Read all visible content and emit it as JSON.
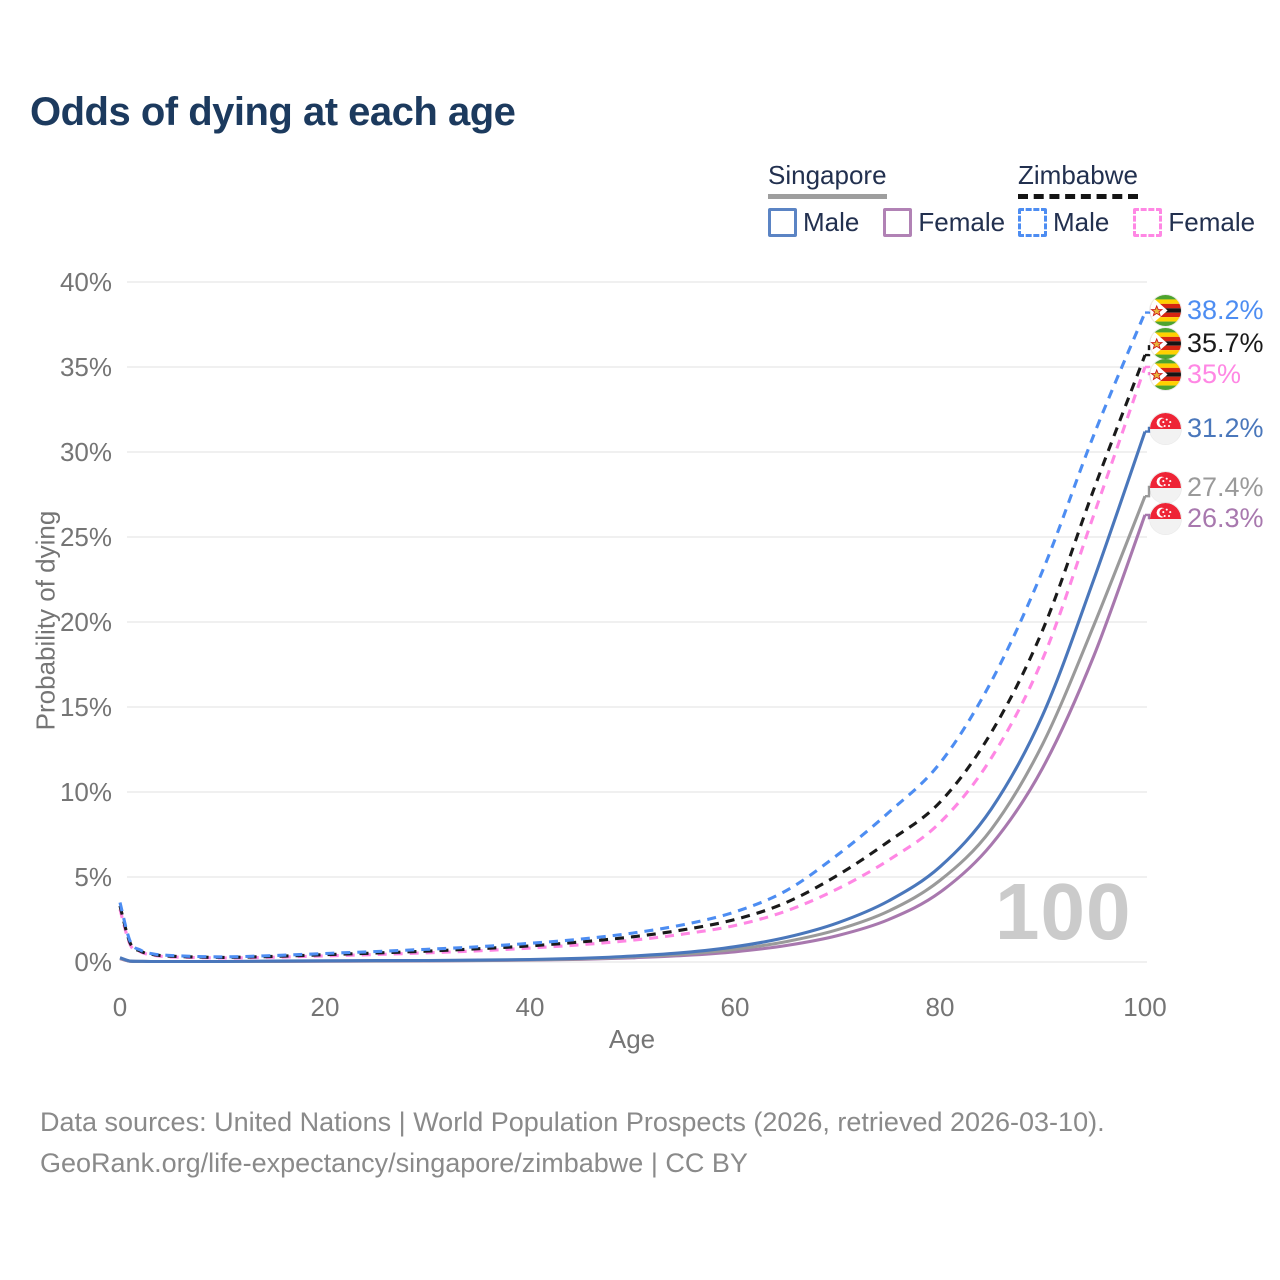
{
  "title": "Odds of dying at each age",
  "legend": {
    "groups": [
      {
        "label": "Singapore",
        "style": "solid",
        "underline_color": "#9e9e9e",
        "items": [
          {
            "label": "Male",
            "color": "#5b84c4"
          },
          {
            "label": "Female",
            "color": "#b182b5"
          }
        ]
      },
      {
        "label": "Zimbabwe",
        "style": "dashed",
        "underline_color": "#141414",
        "items": [
          {
            "label": "Male",
            "color": "#4d8df2"
          },
          {
            "label": "Female",
            "color": "#ff87e4"
          }
        ]
      }
    ]
  },
  "watermark_hover_age": "100",
  "footer": {
    "line1": "Data sources: United Nations | World Population Prospects (2026, retrieved 2026-03-10).",
    "line2": "GeoRank.org/life-expectancy/singapore/zimbabwe | CC BY"
  },
  "chart_data": {
    "type": "line",
    "title": "Odds of dying at each age",
    "xlabel": "Age",
    "ylabel": "Probability of dying",
    "xlim": [
      0,
      100
    ],
    "ylim": [
      0,
      40
    ],
    "x_ticks": [
      0,
      20,
      40,
      60,
      80,
      100
    ],
    "x_tick_labels": [
      "0",
      "20",
      "40",
      "60",
      "80",
      "100"
    ],
    "y_ticks": [
      0,
      5,
      10,
      15,
      20,
      25,
      30,
      35,
      40
    ],
    "y_tick_labels": [
      "0%",
      "5%",
      "10%",
      "15%",
      "20%",
      "25%",
      "30%",
      "35%",
      "40%"
    ],
    "grid": "horizontal",
    "legend_position": "top-right",
    "hover_age": 100,
    "ages": [
      0,
      1,
      2,
      3,
      5,
      10,
      15,
      20,
      25,
      30,
      35,
      40,
      45,
      50,
      55,
      60,
      65,
      70,
      75,
      80,
      85,
      90,
      95,
      100
    ],
    "series": [
      {
        "name": "Zimbabwe Male",
        "country": "Zimbabwe",
        "sex": "Male",
        "style": "dashed",
        "color": "#4d8df2",
        "flag": "zimbabwe",
        "end_label": "38.2%",
        "end_value": 38.2,
        "values": [
          3.5,
          1.2,
          0.7,
          0.5,
          0.38,
          0.3,
          0.38,
          0.5,
          0.62,
          0.75,
          0.9,
          1.1,
          1.35,
          1.7,
          2.2,
          2.95,
          4.2,
          6.3,
          8.8,
          11.7,
          16.5,
          23.0,
          31.0,
          38.2
        ]
      },
      {
        "name": "Zimbabwe Both sexes",
        "country": "Zimbabwe",
        "sex": "Both",
        "style": "dashed",
        "color": "#1a1a1a",
        "flag": "zimbabwe",
        "end_label": "35.7%",
        "end_value": 35.7,
        "values": [
          3.3,
          1.1,
          0.64,
          0.46,
          0.34,
          0.27,
          0.33,
          0.43,
          0.53,
          0.64,
          0.78,
          0.95,
          1.18,
          1.48,
          1.9,
          2.5,
          3.5,
          5.1,
          7.1,
          9.4,
          13.5,
          19.5,
          27.8,
          35.7
        ]
      },
      {
        "name": "Zimbabwe Female",
        "country": "Zimbabwe",
        "sex": "Female",
        "style": "dashed",
        "color": "#ff87e4",
        "flag": "zimbabwe",
        "end_label": "35%",
        "end_value": 35.0,
        "values": [
          3.1,
          1.0,
          0.6,
          0.42,
          0.3,
          0.24,
          0.28,
          0.36,
          0.44,
          0.54,
          0.66,
          0.82,
          1.02,
          1.28,
          1.65,
          2.15,
          3.0,
          4.3,
          6.0,
          8.2,
          12.0,
          17.8,
          26.3,
          35.0
        ]
      },
      {
        "name": "Singapore Male",
        "country": "Singapore",
        "sex": "Male",
        "style": "solid",
        "color": "#4a77bb",
        "flag": "singapore",
        "end_label": "31.2%",
        "end_value": 31.2,
        "values": [
          0.25,
          0.05,
          0.04,
          0.03,
          0.03,
          0.03,
          0.05,
          0.07,
          0.08,
          0.09,
          0.11,
          0.15,
          0.22,
          0.35,
          0.55,
          0.9,
          1.45,
          2.3,
          3.6,
          5.6,
          9.0,
          14.5,
          22.5,
          31.2
        ]
      },
      {
        "name": "Singapore Both sexes",
        "country": "Singapore",
        "sex": "Both",
        "style": "solid",
        "color": "#9a9a9a",
        "flag": "singapore",
        "end_label": "27.4%",
        "end_value": 27.4,
        "values": [
          0.22,
          0.045,
          0.035,
          0.03,
          0.025,
          0.025,
          0.04,
          0.055,
          0.065,
          0.075,
          0.095,
          0.13,
          0.19,
          0.3,
          0.46,
          0.75,
          1.2,
          1.9,
          3.0,
          4.8,
          7.8,
          12.8,
          19.8,
          27.4
        ]
      },
      {
        "name": "Singapore Female",
        "country": "Singapore",
        "sex": "Female",
        "style": "solid",
        "color": "#a878ae",
        "flag": "singapore",
        "end_label": "26.3%",
        "end_value": 26.3,
        "values": [
          0.2,
          0.04,
          0.03,
          0.025,
          0.02,
          0.02,
          0.03,
          0.045,
          0.055,
          0.065,
          0.08,
          0.11,
          0.16,
          0.25,
          0.38,
          0.6,
          0.97,
          1.55,
          2.5,
          4.1,
          6.9,
          11.4,
          18.0,
          26.3
        ]
      }
    ]
  }
}
